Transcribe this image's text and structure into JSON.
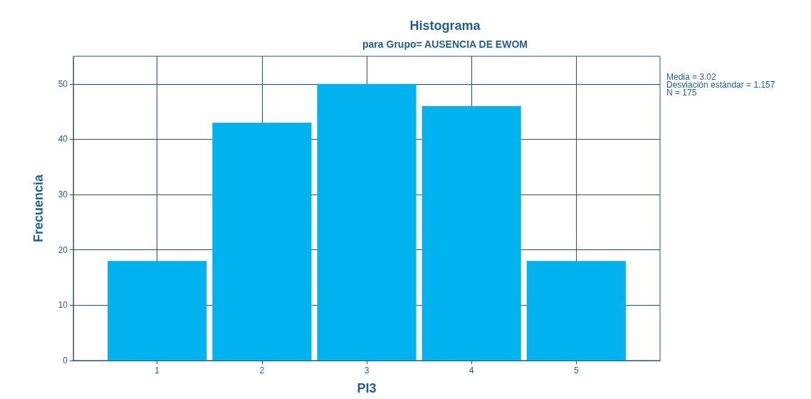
{
  "chart_data": {
    "type": "histogram",
    "title": "Histograma",
    "subtitle": "para Grupo= AUSENCIA DE EWOM",
    "xlabel": "PI3",
    "ylabel": "Frecuencia",
    "bins": [
      0.5,
      1.5,
      2.5,
      3.5,
      4.5,
      5.5
    ],
    "values": [
      18,
      43,
      50,
      46,
      18
    ],
    "color": "#00b2ee",
    "xlim": [
      0.2,
      5.8
    ],
    "xticks": [
      1,
      2,
      3,
      4,
      5
    ],
    "ylim": [
      0,
      55
    ],
    "yticks": [
      0,
      10,
      20,
      30,
      40,
      50
    ],
    "grid": true,
    "annotations": [
      "Media = 3.02",
      "Desviación estándar = 1.157",
      "N = 175"
    ]
  }
}
